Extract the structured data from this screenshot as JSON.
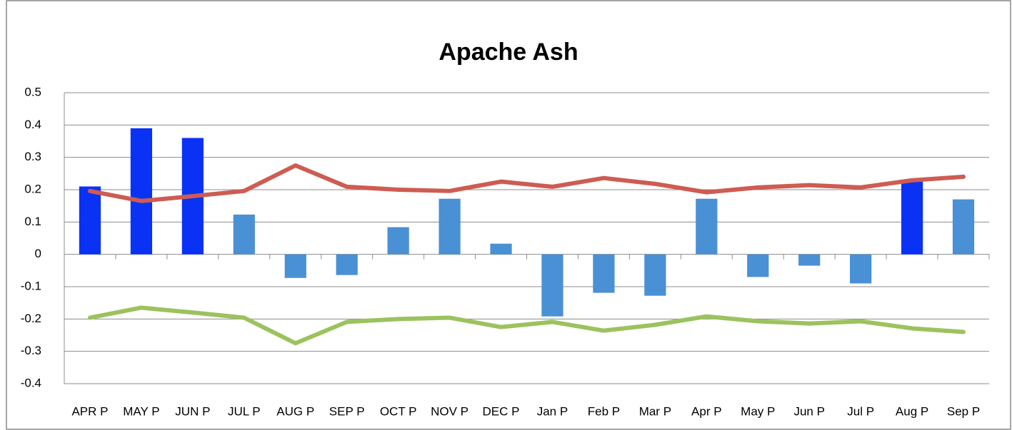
{
  "chart_data": {
    "type": "bar",
    "title": "Apache Ash",
    "categories": [
      "APR P",
      "MAY P",
      "JUN P",
      "JUL P",
      "AUG P",
      "SEP P",
      "OCT P",
      "NOV P",
      "DEC P",
      "Jan P",
      "Feb P",
      "Mar P",
      "Apr P",
      "May P",
      "Jun P",
      "Jul P",
      "Aug P",
      "Sep P"
    ],
    "series": [
      {
        "type": "bar",
        "values": [
          0.21,
          0.39,
          0.36,
          0.123,
          -0.073,
          -0.064,
          0.084,
          0.172,
          0.033,
          -0.192,
          -0.119,
          -0.128,
          0.172,
          -0.07,
          -0.035,
          -0.09,
          0.225,
          0.17
        ],
        "colors": [
          "#0a32f5",
          "#0a32f5",
          "#0a32f5",
          "#4a90d4",
          "#4a90d4",
          "#4a90d4",
          "#4a90d4",
          "#4a90d4",
          "#4a90d4",
          "#4a90d4",
          "#4a90d4",
          "#4a90d4",
          "#4a90d4",
          "#4a90d4",
          "#4a90d4",
          "#4a90d4",
          "#0a32f5",
          "#4a90d4"
        ]
      },
      {
        "type": "line",
        "color": "#cd5c52",
        "values": [
          0.196,
          0.165,
          0.18,
          0.196,
          0.275,
          0.209,
          0.2,
          0.196,
          0.225,
          0.209,
          0.236,
          0.218,
          0.192,
          0.207,
          0.214,
          0.207,
          0.229,
          0.24
        ]
      },
      {
        "type": "line",
        "color": "#9cc25e",
        "values": [
          -0.196,
          -0.165,
          -0.18,
          -0.196,
          -0.275,
          -0.209,
          -0.2,
          -0.196,
          -0.225,
          -0.209,
          -0.236,
          -0.218,
          -0.192,
          -0.207,
          -0.214,
          -0.207,
          -0.229,
          -0.24
        ]
      }
    ],
    "ylim": [
      -0.4,
      0.5
    ],
    "yticks": [
      -0.4,
      -0.3,
      -0.2,
      -0.1,
      0,
      0.1,
      0.2,
      0.3,
      0.4,
      0.5
    ],
    "grid": true
  }
}
